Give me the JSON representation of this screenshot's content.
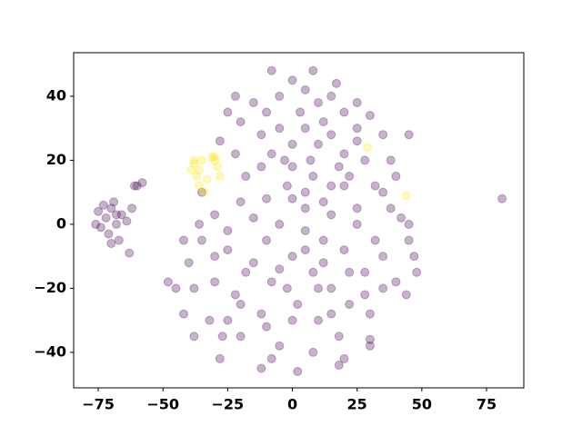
{
  "chart_data": {
    "type": "scatter",
    "xlim": [
      -84.5,
      89.4
    ],
    "ylim": [
      -51.1,
      53.6
    ],
    "xticks": [
      {
        "value": -75,
        "label": "−75"
      },
      {
        "value": -50,
        "label": "−50"
      },
      {
        "value": -25,
        "label": "−25"
      },
      0,
      25,
      50,
      75
    ],
    "yticks": [
      {
        "value": -40,
        "label": "−40"
      },
      {
        "value": -20,
        "label": "−20"
      },
      0,
      20,
      40
    ],
    "series": [
      {
        "color": "#440154",
        "x": [
          -72,
          -70,
          -68,
          -74,
          -66,
          -71,
          -69,
          -75,
          -67,
          -64,
          -73,
          -70,
          -63,
          -62,
          -76,
          -68,
          -60,
          -58,
          -61,
          -10,
          -5,
          0,
          5,
          10,
          15,
          20,
          25,
          28,
          22,
          15,
          8,
          0,
          -8,
          -12,
          -5,
          0,
          5,
          10,
          15,
          20,
          12,
          3,
          -3,
          7,
          18,
          25,
          -15,
          -20,
          -25,
          -22,
          -18,
          30,
          35,
          38,
          32,
          45,
          40,
          -8,
          8,
          -2,
          17,
          -12,
          25,
          5,
          12,
          -28,
          -22,
          -45,
          -40,
          -42,
          -35,
          -30,
          -32,
          -25,
          -22,
          -20,
          -15,
          -12,
          -10,
          -8,
          -5,
          0,
          2,
          5,
          8,
          10,
          12,
          15,
          18,
          20,
          22,
          25,
          28,
          30,
          32,
          35,
          25,
          15,
          5,
          -5,
          -15,
          -25,
          -38,
          -28,
          -8,
          8,
          18,
          20,
          30,
          40,
          44,
          45,
          42,
          47,
          -48,
          -36,
          -18,
          -2,
          12,
          28,
          -10,
          0,
          10,
          -20,
          -30,
          15,
          22,
          5,
          -5,
          35,
          38,
          -42,
          -25,
          -12,
          2,
          30,
          45,
          48,
          -30,
          -35,
          -20,
          -10,
          0,
          20,
          35,
          -27,
          -38,
          81
        ],
        "y": [
          2,
          5,
          0,
          -1,
          3,
          -3,
          7,
          4,
          -5,
          1,
          6,
          -6,
          -9,
          5,
          0,
          3,
          12,
          13,
          12,
          35,
          40,
          45,
          42,
          38,
          40,
          35,
          30,
          20,
          15,
          12,
          15,
          18,
          22,
          28,
          30,
          25,
          30,
          25,
          28,
          22,
          32,
          35,
          20,
          20,
          18,
          38,
          38,
          32,
          35,
          22,
          15,
          34,
          28,
          20,
          12,
          28,
          15,
          48,
          48,
          12,
          44,
          18,
          26,
          10,
          7,
          26,
          40,
          -20,
          -12,
          -28,
          -5,
          -18,
          -30,
          -8,
          -22,
          -35,
          -12,
          -28,
          -5,
          -18,
          -38,
          -10,
          -25,
          -2,
          -15,
          -30,
          -5,
          -20,
          -35,
          -8,
          -25,
          0,
          -15,
          -28,
          -5,
          -20,
          5,
          3,
          5,
          0,
          2,
          -2,
          -35,
          -42,
          -42,
          -40,
          -44,
          -42,
          -36,
          -18,
          -22,
          -5,
          2,
          -10,
          -18,
          0,
          -15,
          -20,
          -12,
          -22,
          -32,
          -30,
          -20,
          -25,
          -10,
          -28,
          -15,
          -8,
          -14,
          -10,
          5,
          -5,
          -30,
          -45,
          -46,
          -38,
          0,
          -15,
          3,
          10,
          7,
          8,
          8,
          12,
          10,
          -35,
          -20,
          8
        ]
      },
      {
        "color": "#fde725",
        "x": [
          -38,
          -36,
          -37,
          -35,
          -39,
          -33,
          -30,
          -29,
          -28,
          -31,
          -36,
          -34,
          29,
          44,
          -38,
          -30
        ],
        "y": [
          19,
          17,
          15,
          20,
          17,
          14,
          20,
          18,
          15,
          21,
          12,
          10,
          24,
          9,
          20,
          21
        ]
      }
    ]
  }
}
